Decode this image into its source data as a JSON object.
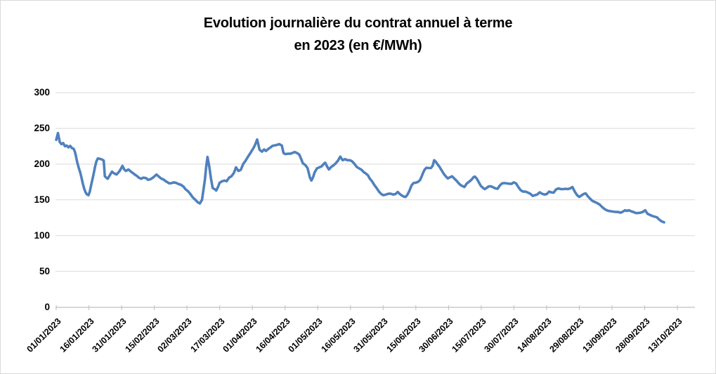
{
  "chart_data": {
    "type": "line",
    "title_line1": "Evolution journalière du contrat annuel à terme",
    "title_line2": "en 2023 (en €/MWh)",
    "unit": "€/MWh",
    "legend": "none",
    "grid": "horizontal",
    "ylim": [
      0,
      300
    ],
    "y_ticks": [
      0,
      50,
      100,
      150,
      200,
      250,
      300
    ],
    "x_tick_interval_days": 15,
    "x_tick_labels": [
      "01/01/2023",
      "16/01/2023",
      "31/01/2023",
      "15/02/2023",
      "02/03/2023",
      "17/03/2023",
      "01/04/2023",
      "16/04/2023",
      "01/05/2023",
      "16/05/2023",
      "31/05/2023",
      "15/06/2023",
      "30/06/2023",
      "15/07/2023",
      "30/07/2023",
      "14/08/2023",
      "29/08/2023",
      "13/09/2023",
      "28/09/2023",
      "13/10/2023"
    ],
    "colors": {
      "line": "#4f81bd",
      "gridline": "#d9d9d9",
      "axis": "#bfbfbf",
      "text": "#000000",
      "background": "#ffffff"
    },
    "series": [
      {
        "name": "Contrat annuel à terme (€/MWh)",
        "x_is": "days since 01/01/2023",
        "points": [
          [
            0,
            234
          ],
          [
            0.8,
            243.5
          ],
          [
            1.6,
            231
          ],
          [
            2.4,
            228
          ],
          [
            3.2,
            229.5
          ],
          [
            4,
            225
          ],
          [
            4.8,
            226
          ],
          [
            5.6,
            223.5
          ],
          [
            6.4,
            225.5
          ],
          [
            7.2,
            222.5
          ],
          [
            8,
            221.5
          ],
          [
            8.6,
            217
          ],
          [
            9,
            212
          ],
          [
            9.6,
            203
          ],
          [
            10.3,
            195
          ],
          [
            11,
            188.5
          ],
          [
            11.6,
            181
          ],
          [
            12.2,
            173
          ],
          [
            12.8,
            166
          ],
          [
            13.4,
            161
          ],
          [
            14,
            158
          ],
          [
            14.8,
            156.5
          ],
          [
            15.4,
            161.5
          ],
          [
            16,
            170
          ],
          [
            16.6,
            178.5
          ],
          [
            17.2,
            187
          ],
          [
            17.8,
            196
          ],
          [
            18.4,
            203.5
          ],
          [
            19.1,
            208
          ],
          [
            20,
            207.5
          ],
          [
            21,
            206.5
          ],
          [
            21.8,
            205
          ],
          [
            22.3,
            183
          ],
          [
            23,
            181
          ],
          [
            23.6,
            179.5
          ],
          [
            24.6,
            184.5
          ],
          [
            25.6,
            189.5
          ],
          [
            26.6,
            187
          ],
          [
            27.7,
            185.5
          ],
          [
            29,
            190
          ],
          [
            30.4,
            197.5
          ],
          [
            31.2,
            192.5
          ],
          [
            32,
            190.5
          ],
          [
            33.1,
            192.5
          ],
          [
            34.5,
            189
          ],
          [
            35.8,
            186
          ],
          [
            37,
            183.5
          ],
          [
            37.9,
            181
          ],
          [
            39,
            179.5
          ],
          [
            39.9,
            181
          ],
          [
            41.2,
            180.5
          ],
          [
            42.2,
            178
          ],
          [
            43.3,
            179
          ],
          [
            44.4,
            181
          ],
          [
            46,
            185.5
          ],
          [
            47.1,
            182.5
          ],
          [
            48.1,
            180
          ],
          [
            49.2,
            178.5
          ],
          [
            50.3,
            176
          ],
          [
            51.9,
            173
          ],
          [
            53,
            173.5
          ],
          [
            54.1,
            174.5
          ],
          [
            55.2,
            173.5
          ],
          [
            56.2,
            172
          ],
          [
            57.3,
            171
          ],
          [
            58.4,
            168.5
          ],
          [
            59.4,
            164.5
          ],
          [
            60.5,
            162
          ],
          [
            61.6,
            158
          ],
          [
            62.6,
            153.5
          ],
          [
            63.7,
            150.5
          ],
          [
            64.8,
            147
          ],
          [
            65.9,
            145
          ],
          [
            66.9,
            150
          ],
          [
            67.5,
            163
          ],
          [
            68.2,
            178
          ],
          [
            68.8,
            196
          ],
          [
            69.4,
            210
          ],
          [
            70.2,
            197
          ],
          [
            71,
            180
          ],
          [
            71.8,
            166.5
          ],
          [
            72.9,
            164.5
          ],
          [
            73.4,
            163
          ],
          [
            74.2,
            168
          ],
          [
            75,
            174
          ],
          [
            76.1,
            176
          ],
          [
            77.2,
            177
          ],
          [
            78.2,
            176
          ],
          [
            79.3,
            181
          ],
          [
            80.4,
            183
          ],
          [
            81.5,
            187.5
          ],
          [
            82.5,
            195.5
          ],
          [
            83.6,
            190.5
          ],
          [
            84.7,
            192
          ],
          [
            85.8,
            200.5
          ],
          [
            86.8,
            204.5
          ],
          [
            88,
            210.5
          ],
          [
            89.5,
            217.5
          ],
          [
            90.3,
            221.5
          ],
          [
            91.1,
            226
          ],
          [
            92.2,
            234.5
          ],
          [
            93.3,
            220
          ],
          [
            94.4,
            217.5
          ],
          [
            95.4,
            220.5
          ],
          [
            96.2,
            218.5
          ],
          [
            97.6,
            222
          ],
          [
            98.4,
            223.5
          ],
          [
            99.2,
            225.5
          ],
          [
            100.8,
            226.5
          ],
          [
            102.4,
            228
          ],
          [
            103.5,
            226
          ],
          [
            104.3,
            215.5
          ],
          [
            105.1,
            214
          ],
          [
            106.2,
            214.5
          ],
          [
            107.3,
            214.5
          ],
          [
            108.3,
            215.5
          ],
          [
            109.4,
            217
          ],
          [
            110.5,
            215.5
          ],
          [
            111.5,
            213.5
          ],
          [
            112.4,
            207
          ],
          [
            113.2,
            201
          ],
          [
            114.2,
            199
          ],
          [
            115.3,
            194.5
          ],
          [
            116.4,
            181
          ],
          [
            117.1,
            177
          ],
          [
            117.9,
            182
          ],
          [
            118.5,
            188
          ],
          [
            119.6,
            194
          ],
          [
            120.7,
            195.5
          ],
          [
            121.8,
            197
          ],
          [
            122.8,
            200.5
          ],
          [
            123.4,
            202
          ],
          [
            124.4,
            196
          ],
          [
            125.1,
            192.5
          ],
          [
            126.1,
            196
          ],
          [
            127.1,
            198
          ],
          [
            128.2,
            201
          ],
          [
            129.3,
            205
          ],
          [
            130.3,
            210.5
          ],
          [
            131.4,
            205.5
          ],
          [
            132.5,
            207
          ],
          [
            133.6,
            205.5
          ],
          [
            134.7,
            205.5
          ],
          [
            135.7,
            204
          ],
          [
            136.8,
            200.5
          ],
          [
            137.9,
            196
          ],
          [
            139,
            194
          ],
          [
            140.1,
            192
          ],
          [
            141,
            189
          ],
          [
            142,
            187
          ],
          [
            143,
            184.5
          ],
          [
            143.9,
            179.5
          ],
          [
            144.9,
            176
          ],
          [
            145.9,
            171
          ],
          [
            147,
            166.5
          ],
          [
            148.1,
            161.5
          ],
          [
            149.2,
            158
          ],
          [
            150.2,
            156.5
          ],
          [
            151.3,
            157.5
          ],
          [
            152.4,
            158.5
          ],
          [
            153.5,
            158.5
          ],
          [
            154.5,
            157.5
          ],
          [
            155.6,
            158
          ],
          [
            156.7,
            161
          ],
          [
            157.7,
            158
          ],
          [
            158.6,
            156
          ],
          [
            159.5,
            154.5
          ],
          [
            160.3,
            154
          ],
          [
            161.2,
            157.5
          ],
          [
            162.1,
            163
          ],
          [
            163,
            170
          ],
          [
            163.9,
            173.5
          ],
          [
            164.9,
            174
          ],
          [
            165.9,
            175
          ],
          [
            166.9,
            177.5
          ],
          [
            167.7,
            183
          ],
          [
            168.4,
            188.5
          ],
          [
            169.1,
            192.5
          ],
          [
            169.9,
            195
          ],
          [
            170.9,
            194.5
          ],
          [
            171.9,
            194.5
          ],
          [
            172.7,
            197.5
          ],
          [
            173.4,
            205.5
          ],
          [
            174.2,
            203
          ],
          [
            174.9,
            200
          ],
          [
            175.8,
            196.5
          ],
          [
            176.8,
            191.5
          ],
          [
            177.8,
            186.5
          ],
          [
            178.7,
            183
          ],
          [
            179.7,
            180
          ],
          [
            180.6,
            181.5
          ],
          [
            181.6,
            183
          ],
          [
            182.6,
            180
          ],
          [
            183.6,
            177
          ],
          [
            184.6,
            173.5
          ],
          [
            185.6,
            170.5
          ],
          [
            186.6,
            169
          ],
          [
            187.3,
            168
          ],
          [
            188.4,
            173
          ],
          [
            189.5,
            175.5
          ],
          [
            190.5,
            178
          ],
          [
            191.4,
            181.5
          ],
          [
            192.1,
            182.5
          ],
          [
            193,
            179.5
          ],
          [
            193.8,
            175
          ],
          [
            194.8,
            169.5
          ],
          [
            195.9,
            166.5
          ],
          [
            196.6,
            165
          ],
          [
            197.6,
            167
          ],
          [
            198.5,
            169
          ],
          [
            199.5,
            169
          ],
          [
            200.5,
            167.5
          ],
          [
            201.5,
            166
          ],
          [
            202.5,
            165.5
          ],
          [
            203.4,
            169.5
          ],
          [
            204.5,
            173
          ],
          [
            205.6,
            173.5
          ],
          [
            206.8,
            173
          ],
          [
            208,
            172.5
          ],
          [
            209,
            172.5
          ],
          [
            209.9,
            174.5
          ],
          [
            211,
            173
          ],
          [
            212,
            168
          ],
          [
            213.1,
            163.5
          ],
          [
            214.2,
            161.5
          ],
          [
            215.4,
            161.5
          ],
          [
            216.5,
            160
          ],
          [
            217.5,
            158.5
          ],
          [
            218.6,
            155.5
          ],
          [
            219.6,
            156.5
          ],
          [
            220.7,
            157.5
          ],
          [
            221.8,
            160.5
          ],
          [
            222.9,
            158.5
          ],
          [
            223.9,
            157.5
          ],
          [
            225,
            158
          ],
          [
            226.1,
            161.5
          ],
          [
            227.2,
            160.5
          ],
          [
            228.2,
            160
          ],
          [
            229.3,
            164.5
          ],
          [
            230.4,
            166
          ],
          [
            231.5,
            165
          ],
          [
            232.6,
            165
          ],
          [
            233.7,
            165.5
          ],
          [
            234.7,
            165
          ],
          [
            235.8,
            166
          ],
          [
            236.8,
            168
          ],
          [
            237.9,
            161.5
          ],
          [
            239,
            156.5
          ],
          [
            240,
            154
          ],
          [
            241.1,
            156.5
          ],
          [
            242.2,
            158.5
          ],
          [
            242.9,
            159
          ],
          [
            243.9,
            155
          ],
          [
            245,
            151.5
          ],
          [
            246,
            148.5
          ],
          [
            247.1,
            147
          ],
          [
            248.2,
            145.5
          ],
          [
            249.3,
            143.5
          ],
          [
            250.3,
            140.5
          ],
          [
            251.4,
            137.5
          ],
          [
            252.5,
            135.5
          ],
          [
            253.5,
            134.5
          ],
          [
            254.6,
            134
          ],
          [
            255.7,
            133.5
          ],
          [
            256.8,
            133
          ],
          [
            257.9,
            133
          ],
          [
            258.9,
            132
          ],
          [
            260,
            133.5
          ],
          [
            261,
            135.5
          ],
          [
            261.7,
            134.5
          ],
          [
            262.7,
            135.5
          ],
          [
            263.8,
            134
          ],
          [
            264.8,
            133
          ],
          [
            265.9,
            131.5
          ],
          [
            267,
            131.5
          ],
          [
            268,
            132
          ],
          [
            269.1,
            133
          ],
          [
            270.2,
            135.5
          ],
          [
            271.3,
            130.5
          ],
          [
            272.4,
            129
          ],
          [
            273.4,
            127.5
          ],
          [
            274.5,
            126.5
          ],
          [
            275.6,
            125.5
          ],
          [
            276.6,
            122.5
          ],
          [
            277.7,
            120
          ],
          [
            278.9,
            118.5
          ]
        ]
      }
    ]
  }
}
